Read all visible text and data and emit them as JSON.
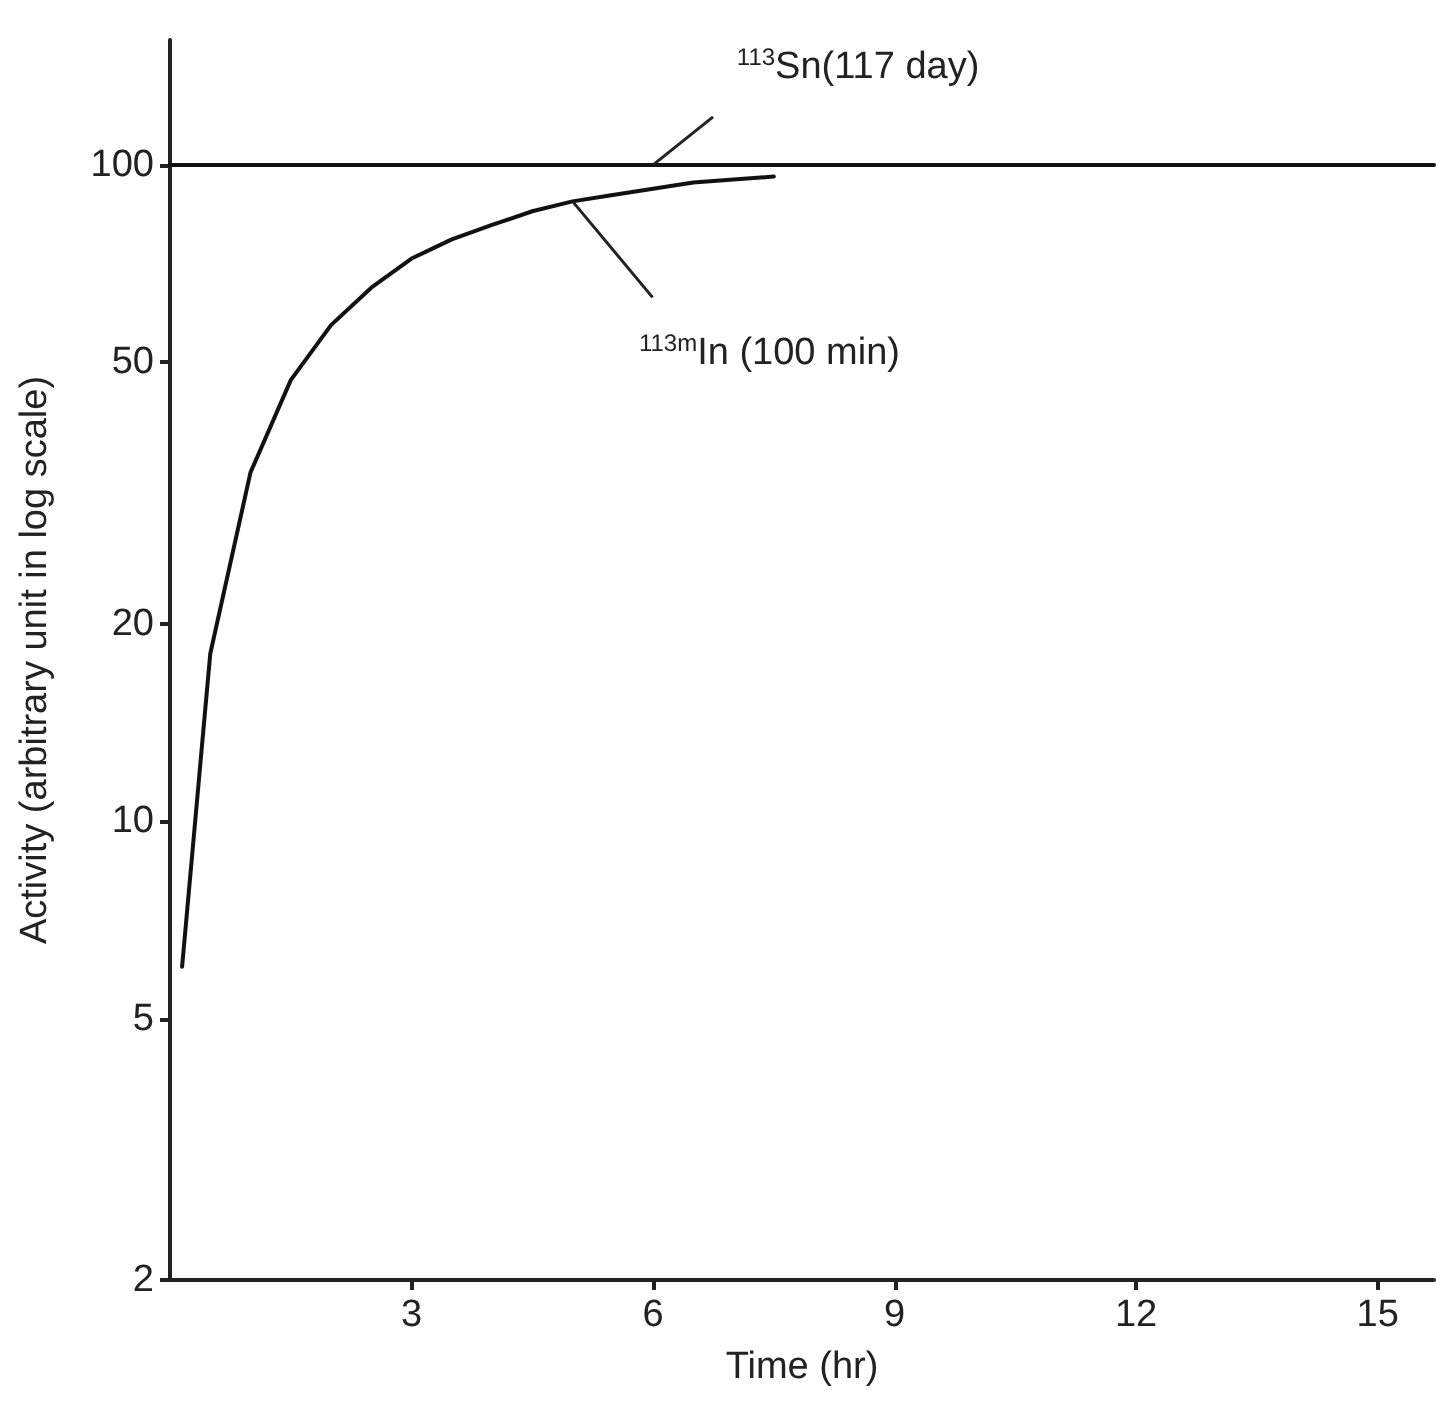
{
  "chart_data": {
    "type": "line",
    "xlabel": "Time (hr)",
    "ylabel": "Activity (arbitrary unit in log scale)",
    "log": "y",
    "grid": false,
    "marker": "none",
    "line_style": "solid",
    "xlim": [
      0,
      15.7
    ],
    "xticks": [
      3,
      6,
      9,
      12,
      15
    ],
    "ylim": [
      2,
      155
    ],
    "yticks": [
      2,
      5,
      10,
      20,
      50,
      100
    ],
    "series": [
      {
        "color": "#111111",
        "x": [
          0,
          15.7
        ],
        "values": [
          100,
          100
        ]
      },
      {
        "color": "#111111",
        "x": [
          0.15,
          0.5,
          1,
          1.5,
          2,
          2.5,
          3,
          3.5,
          4,
          4.5,
          5,
          5.5,
          6,
          6.5,
          7,
          7.5
        ],
        "values": [
          6,
          18,
          34,
          47,
          57,
          65,
          72,
          77,
          81,
          85,
          88,
          90,
          92,
          94,
          95,
          96
        ]
      }
    ],
    "annotations": [
      {
        "text": "$^{113}$Sn(117 day)",
        "x": 6,
        "y": 100
      },
      {
        "text": "$^{113m}$In (100 min)",
        "x": 5,
        "y": 88
      }
    ]
  }
}
